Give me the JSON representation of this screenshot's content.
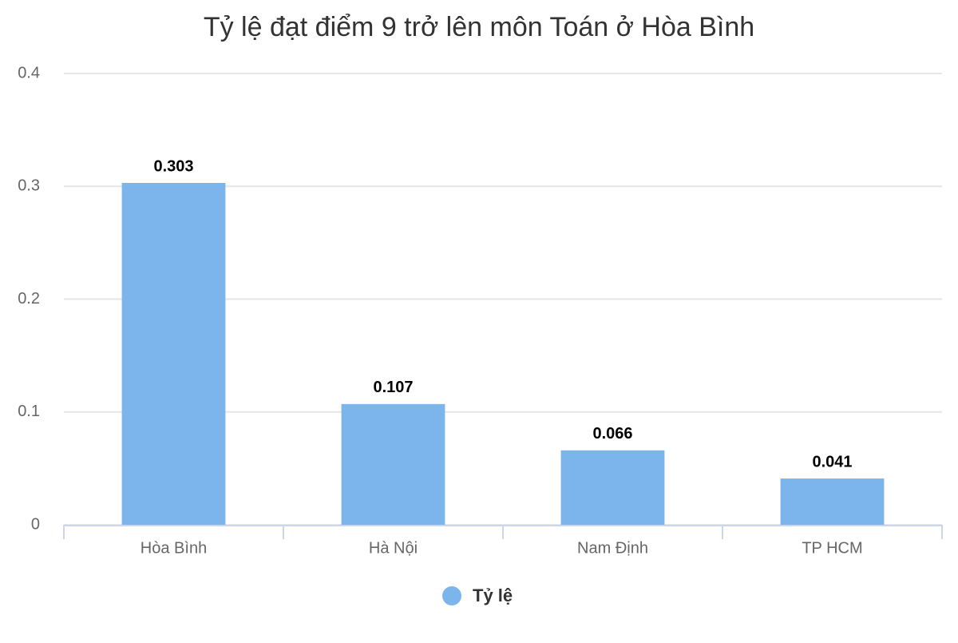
{
  "chart_data": {
    "type": "bar",
    "title": "Tỷ lệ đạt điểm 9 trở lên môn Toán ở Hòa Bình",
    "categories": [
      "Hòa Bình",
      "Hà Nội",
      "Nam Định",
      "TP HCM"
    ],
    "series": [
      {
        "name": "Tỷ lệ",
        "color": "#7cb5ec",
        "values": [
          0.303,
          0.107,
          0.066,
          0.041
        ]
      }
    ],
    "ylim": [
      0,
      0.4
    ],
    "yticks": [
      0,
      0.1,
      0.2,
      0.3,
      0.4
    ],
    "grid": true,
    "legend": "bottom"
  }
}
